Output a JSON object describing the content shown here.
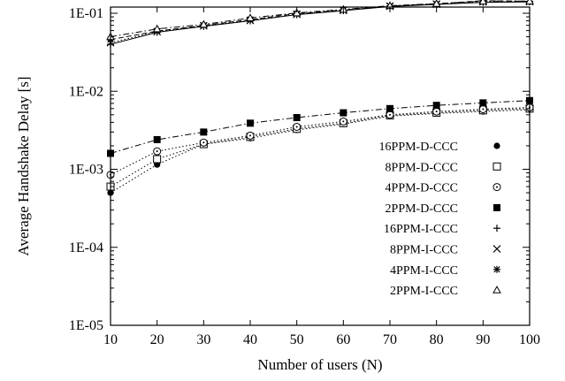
{
  "chart_data": {
    "type": "line",
    "xlabel": "Number of users (N)",
    "ylabel": "Average Handshake Delay [s]",
    "x": [
      10,
      20,
      30,
      40,
      50,
      60,
      70,
      80,
      90,
      100
    ],
    "x_ticks": [
      "10",
      "20",
      "30",
      "40",
      "50",
      "60",
      "70",
      "80",
      "90",
      "100"
    ],
    "y_ticks": [
      "1E-05",
      "1E-04",
      "1E-03",
      "1E-02",
      "1E-01"
    ],
    "xlim": [
      10,
      100
    ],
    "ylim": [
      1e-05,
      0.2
    ],
    "yscale": "log",
    "grid": false,
    "legend_position": "bottom-right",
    "series": [
      {
        "name": "16PPM-D-CCC",
        "marker": "filled-circle",
        "dash": "dotted",
        "values": [
          0.0005,
          0.00115,
          0.0021,
          0.0025,
          0.0032,
          0.0038,
          0.0048,
          0.0052,
          0.0055,
          0.0058
        ]
      },
      {
        "name": "8PPM-D-CCC",
        "marker": "open-square",
        "dash": "dotted",
        "values": [
          0.0006,
          0.00135,
          0.0021,
          0.0026,
          0.0033,
          0.0039,
          0.0049,
          0.0053,
          0.0057,
          0.006
        ]
      },
      {
        "name": "4PPM-D-CCC",
        "marker": "open-circle-dot",
        "dash": "dotted",
        "values": [
          0.00085,
          0.0017,
          0.0022,
          0.0027,
          0.0035,
          0.0041,
          0.005,
          0.0055,
          0.0059,
          0.0062
        ]
      },
      {
        "name": "2PPM-D-CCC",
        "marker": "filled-square",
        "dash": "dashdot",
        "values": [
          0.0016,
          0.0024,
          0.003,
          0.0039,
          0.0046,
          0.0053,
          0.006,
          0.0066,
          0.0071,
          0.0076
        ]
      },
      {
        "name": "16PPM-I-CCC",
        "marker": "plus",
        "dash": "solid",
        "values": [
          0.04,
          0.057,
          0.068,
          0.08,
          0.096,
          0.108,
          0.122,
          0.13,
          0.138,
          0.14
        ]
      },
      {
        "name": "8PPM-I-CCC",
        "marker": "cross",
        "dash": "dotted",
        "values": [
          0.042,
          0.058,
          0.069,
          0.081,
          0.097,
          0.109,
          0.123,
          0.131,
          0.14,
          0.141
        ]
      },
      {
        "name": "4PPM-I-CCC",
        "marker": "star",
        "dash": "dashed",
        "values": [
          0.046,
          0.059,
          0.07,
          0.083,
          0.099,
          0.11,
          0.124,
          0.132,
          0.145,
          0.142
        ]
      },
      {
        "name": "2PPM-I-CCC",
        "marker": "open-triangle",
        "dash": "dashdot",
        "values": [
          0.05,
          0.063,
          0.072,
          0.087,
          0.101,
          0.112,
          0.125,
          0.133,
          0.143,
          0.143
        ]
      }
    ]
  }
}
